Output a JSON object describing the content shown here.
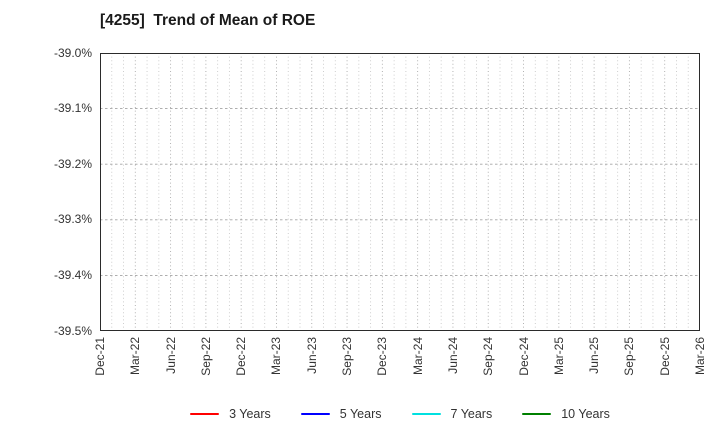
{
  "figure": {
    "background": "#ffffff"
  },
  "chart_data": {
    "type": "line",
    "title": "[4255]  Trend of Mean of ROE",
    "xlabel": "",
    "ylabel": "",
    "x_tick_labels": [
      "Dec-21",
      "Mar-22",
      "Jun-22",
      "Sep-22",
      "Dec-22",
      "Mar-23",
      "Jun-23",
      "Sep-23",
      "Dec-23",
      "Mar-24",
      "Jun-24",
      "Sep-24",
      "Dec-24",
      "Mar-25",
      "Jun-25",
      "Sep-25",
      "Dec-25",
      "Mar-26"
    ],
    "y_tick_labels": [
      "-39.0%",
      "-39.1%",
      "-39.2%",
      "-39.3%",
      "-39.4%",
      "-39.5%"
    ],
    "ylim": [
      -39.5,
      -39.0
    ],
    "grid": true,
    "x_minor_divisions_per_interval": 3,
    "legend_position": "bottom",
    "series": [
      {
        "name": "3 Years",
        "color": "#ff0000",
        "values": []
      },
      {
        "name": "5 Years",
        "color": "#0000ff",
        "values": []
      },
      {
        "name": "7 Years",
        "color": "#00e0e0",
        "values": []
      },
      {
        "name": "10 Years",
        "color": "#008000",
        "values": []
      }
    ]
  },
  "styles": {
    "grid_major_color": "#aaaaaa",
    "grid_minor_color": "#c9c9c9",
    "grid_h_color": "#a3a3a3",
    "axis_border_color": "#2b2b2b",
    "tick_label_color": "#333333",
    "title_color": "#1a1a1a",
    "legend_text_color": "#333333"
  }
}
